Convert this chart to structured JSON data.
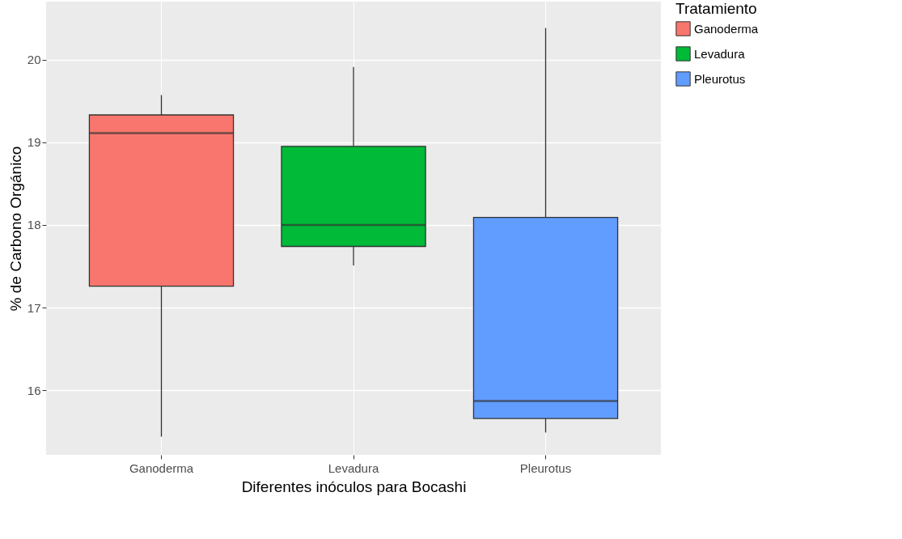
{
  "chart_data": {
    "type": "box",
    "xlabel": "Diferentes inóculos para Bocashi",
    "ylabel": "% de Carbono Orgánico",
    "legend_title": "Tratamiento",
    "legend": "right",
    "grid": true,
    "categories": [
      "Ganoderma",
      "Levadura",
      "Pleurotus"
    ],
    "ylim": [
      15.22,
      20.7
    ],
    "yticks": [
      16,
      17,
      18,
      19,
      20
    ],
    "series": [
      {
        "name": "Ganoderma",
        "color": "#f8766d",
        "boxes": [
          {
            "low": 15.44,
            "q1": 17.26,
            "median": 19.11,
            "q3": 19.33,
            "high": 19.57
          },
          null,
          null
        ]
      },
      {
        "name": "Levadura",
        "color": "#00ba38",
        "boxes": [
          null,
          {
            "low": 17.51,
            "q1": 17.74,
            "median": 18.0,
            "q3": 18.95,
            "high": 19.91
          },
          null
        ]
      },
      {
        "name": "Pleurotus",
        "color": "#619cff",
        "boxes": [
          null,
          null,
          {
            "low": 15.49,
            "q1": 15.66,
            "median": 15.87,
            "q3": 18.09,
            "high": 20.38
          }
        ]
      }
    ]
  }
}
